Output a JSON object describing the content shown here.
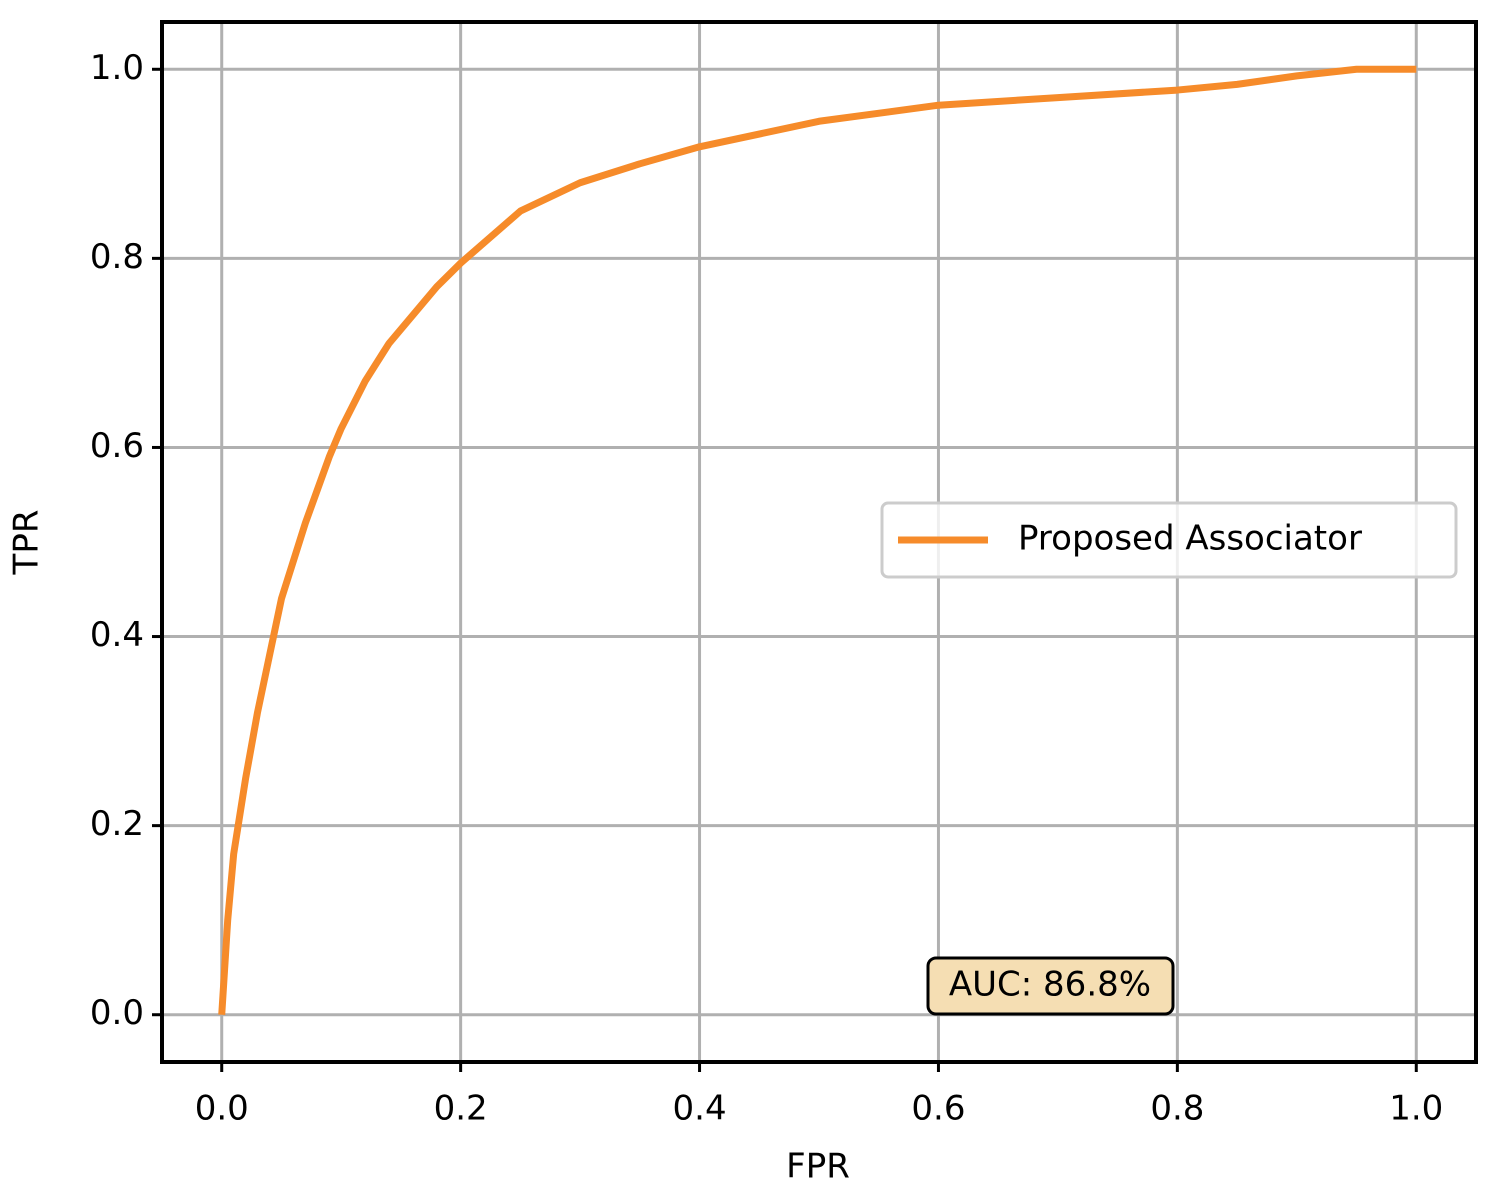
{
  "chart_data": {
    "type": "line",
    "x_label": "FPR",
    "y_label": "TPR",
    "x": [
      0,
      0.005,
      0.01,
      0.02,
      0.03,
      0.04,
      0.05,
      0.06,
      0.07,
      0.08,
      0.09,
      0.1,
      0.12,
      0.14,
      0.16,
      0.18,
      0.2,
      0.25,
      0.3,
      0.35,
      0.4,
      0.5,
      0.6,
      0.7,
      0.8,
      0.85,
      0.9,
      0.95,
      1.0
    ],
    "series": [
      {
        "name": "Proposed Associator",
        "color": "#f68b2a",
        "values": [
          0,
          0.1,
          0.17,
          0.25,
          0.32,
          0.38,
          0.44,
          0.48,
          0.52,
          0.555,
          0.59,
          0.62,
          0.67,
          0.71,
          0.74,
          0.77,
          0.795,
          0.85,
          0.88,
          0.9,
          0.918,
          0.945,
          0.962,
          0.97,
          0.978,
          0.984,
          0.993,
          1.0,
          1.0
        ]
      }
    ],
    "xlim": [
      -0.05,
      1.05
    ],
    "ylim": [
      -0.05,
      1.05
    ],
    "xticks": [
      {
        "value": 0,
        "label": "0.0"
      },
      0.2,
      0.4,
      0.6,
      0.8,
      {
        "value": 1,
        "label": "1.0"
      }
    ],
    "yticks": [
      {
        "value": 0,
        "label": "0.0"
      },
      0.2,
      0.4,
      0.6,
      0.8,
      {
        "value": 1,
        "label": "1.0"
      }
    ],
    "grid": true,
    "legend": "center right",
    "annotation": "AUC: 86.8%"
  }
}
